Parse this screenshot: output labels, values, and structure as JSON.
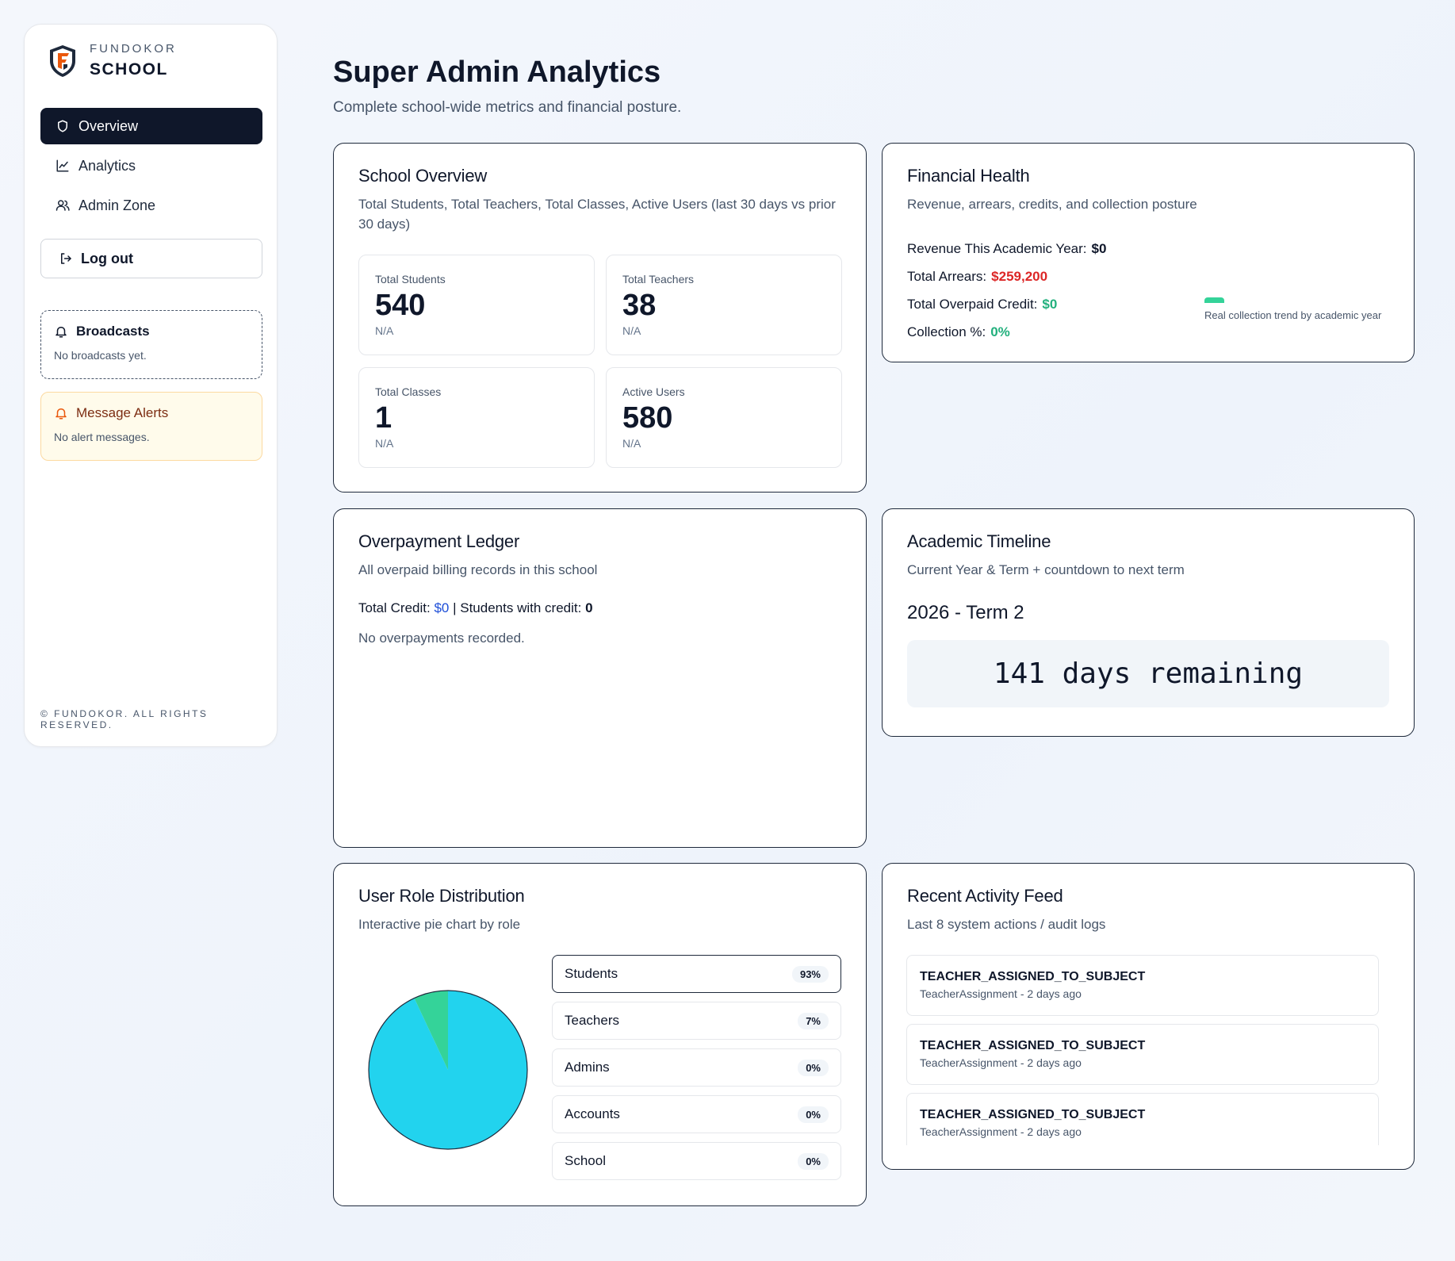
{
  "brand": {
    "top": "FUNDOKOR",
    "bottom": "SCHOOL"
  },
  "nav": {
    "items": [
      {
        "label": "Overview",
        "icon": "shield-icon"
      },
      {
        "label": "Analytics",
        "icon": "line-chart-icon"
      },
      {
        "label": "Admin Zone",
        "icon": "users-icon"
      }
    ],
    "logout": "Log out"
  },
  "broadcasts": {
    "title": "Broadcasts",
    "empty": "No broadcasts yet."
  },
  "alerts": {
    "title": "Message Alerts",
    "empty": "No alert messages."
  },
  "footer": "© FUNDOKOR. ALL RIGHTS RESERVED.",
  "page": {
    "title": "Super Admin Analytics",
    "subtitle": "Complete school-wide metrics and financial posture."
  },
  "overview": {
    "title": "School Overview",
    "subtitle": "Total Students, Total Teachers, Total Classes, Active Users (last 30 days vs prior 30 days)",
    "stats": [
      {
        "label": "Total Students",
        "value": "540",
        "sub": "N/A"
      },
      {
        "label": "Total Teachers",
        "value": "38",
        "sub": "N/A"
      },
      {
        "label": "Total Classes",
        "value": "1",
        "sub": "N/A"
      },
      {
        "label": "Active Users",
        "value": "580",
        "sub": "N/A"
      }
    ]
  },
  "finance": {
    "title": "Financial Health",
    "subtitle": "Revenue, arrears, credits, and collection posture",
    "revenue_label": "Revenue This Academic Year:",
    "revenue_value": "$0",
    "arrears_label": "Total Arrears:",
    "arrears_value": "$259,200",
    "credit_label": "Total Overpaid Credit:",
    "credit_value": "$0",
    "collection_label": "Collection %:",
    "collection_value": "0%",
    "trend_label": "Real collection trend by academic year",
    "colors": {
      "arrears": "#dc2626",
      "positive": "#22b07d",
      "trend_bar": "#34d399"
    }
  },
  "overpay": {
    "title": "Overpayment Ledger",
    "subtitle": "All overpaid billing records in this school",
    "credit_label": "Total Credit:",
    "credit_value": "$0",
    "separator": "|",
    "students_label": "Students with credit:",
    "students_value": "0",
    "empty": "No overpayments recorded."
  },
  "academic": {
    "title": "Academic Timeline",
    "subtitle": "Current Year & Term + countdown to next term",
    "term": "2026 - Term 2",
    "countdown": "141 days remaining"
  },
  "roles": {
    "title": "User Role Distribution",
    "subtitle": "Interactive pie chart by role",
    "items": [
      {
        "label": "Students",
        "pct": "93%"
      },
      {
        "label": "Teachers",
        "pct": "7%"
      },
      {
        "label": "Admins",
        "pct": "0%"
      },
      {
        "label": "Accounts",
        "pct": "0%"
      },
      {
        "label": "School",
        "pct": "0%"
      }
    ]
  },
  "chart_data": {
    "type": "pie",
    "categories": [
      "Students",
      "Teachers",
      "Admins",
      "Accounts",
      "School"
    ],
    "values": [
      93,
      7,
      0,
      0,
      0
    ],
    "colors": [
      "#22d3ee",
      "#34d399",
      "#6366f1",
      "#f59e0b",
      "#f43f5e"
    ]
  },
  "activity": {
    "title": "Recent Activity Feed",
    "subtitle": "Last 8 system actions / audit logs",
    "items": [
      {
        "title": "TEACHER_ASSIGNED_TO_SUBJECT",
        "meta": "TeacherAssignment - 2 days ago"
      },
      {
        "title": "TEACHER_ASSIGNED_TO_SUBJECT",
        "meta": "TeacherAssignment - 2 days ago"
      },
      {
        "title": "TEACHER_ASSIGNED_TO_SUBJECT",
        "meta": "TeacherAssignment - 2 days ago"
      }
    ]
  }
}
